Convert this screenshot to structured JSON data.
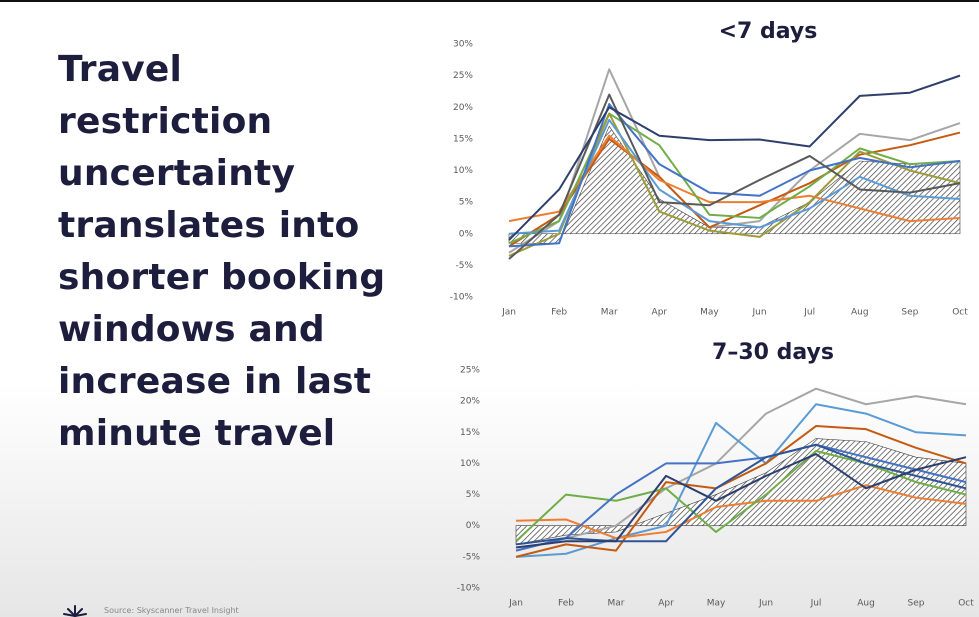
{
  "headline": [
    "Travel",
    "restriction",
    "uncertainty",
    "translates into",
    "shorter booking",
    "windows and",
    "increase in last",
    "minute travel"
  ],
  "source": "Source: Skyscanner Travel Insight",
  "chart_data": [
    {
      "type": "line",
      "title": "<7 days",
      "categories": [
        "Jan",
        "Feb",
        "Mar",
        "Apr",
        "May",
        "Jun",
        "Jul",
        "Aug",
        "Sep",
        "Oct"
      ],
      "ylim": [
        -10,
        30
      ],
      "yticks": [
        {
          "value": -10,
          "label": "-10%"
        },
        {
          "value": -5,
          "label": "-5%"
        },
        {
          "value": 0,
          "label": "0%"
        },
        {
          "value": 5,
          "label": "5%"
        },
        {
          "value": 10,
          "label": "10%"
        },
        {
          "value": 15,
          "label": "15%"
        },
        {
          "value": 20,
          "label": "20%"
        },
        {
          "value": 25,
          "label": "25%"
        },
        {
          "value": 30,
          "label": "30%"
        }
      ],
      "series": [
        {
          "style": "hatched",
          "color": "#404040",
          "values": [
            -1.5,
            -1.5,
            17,
            5.5,
            1,
            1,
            5,
            11.5,
            11,
            11.5
          ]
        },
        {
          "color": "#a6a6a6",
          "values": [
            -3,
            2,
            26,
            9,
            1,
            2,
            10,
            15.8,
            14.8,
            17.5
          ]
        },
        {
          "color": "#c55a11",
          "values": [
            -2,
            3,
            15,
            9,
            1,
            4.5,
            8,
            12.5,
            14,
            16
          ]
        },
        {
          "color": "#ed7d31",
          "values": [
            2,
            3.5,
            15.5,
            8.5,
            5,
            5,
            6,
            4,
            2,
            2.5
          ]
        },
        {
          "color": "#70ad47",
          "values": [
            -1.5,
            2,
            19,
            14,
            3,
            2.5,
            7.5,
            13.5,
            11,
            11.5
          ]
        },
        {
          "color": "#9c9c3a",
          "values": [
            -3.5,
            0,
            19,
            3.5,
            0.5,
            -0.5,
            5,
            13,
            10,
            8
          ]
        },
        {
          "color": "#5b9bd5",
          "values": [
            0,
            0.5,
            18,
            7,
            2,
            1,
            4,
            9,
            6,
            5.5
          ]
        },
        {
          "color": "#4472c4",
          "values": [
            -2,
            -1.5,
            20.5,
            11,
            6.5,
            6,
            10,
            12,
            10.5,
            11.5
          ]
        },
        {
          "color": "#595959",
          "values": [
            -4,
            3,
            22,
            5,
            4.5,
            8.5,
            12.3,
            7,
            6.5,
            8
          ]
        },
        {
          "color": "#2e3f6e",
          "values": [
            -1,
            7,
            20,
            15.5,
            14.8,
            14.9,
            13.8,
            21.8,
            22.3,
            25
          ]
        }
      ]
    },
    {
      "type": "line",
      "title": "7–30 days",
      "categories": [
        "Jan",
        "Feb",
        "Mar",
        "Apr",
        "May",
        "Jun",
        "Jul",
        "Aug",
        "Sep",
        "Oct"
      ],
      "ylim": [
        -10,
        25
      ],
      "yticks": [
        {
          "value": -10,
          "label": "-10%"
        },
        {
          "value": -5,
          "label": "-5%"
        },
        {
          "value": 0,
          "label": "0%"
        },
        {
          "value": 5,
          "label": "5%"
        },
        {
          "value": 10,
          "label": "10%"
        },
        {
          "value": 15,
          "label": "15%"
        },
        {
          "value": 20,
          "label": "20%"
        },
        {
          "value": 25,
          "label": "25%"
        }
      ],
      "series": [
        {
          "style": "hatched",
          "color": "#404040",
          "values": [
            -3,
            -1.5,
            -1,
            2,
            5,
            8.5,
            14,
            13.5,
            11,
            10
          ]
        },
        {
          "color": "#a6a6a6",
          "values": [
            -4,
            -2,
            0,
            6,
            10,
            18,
            22,
            19.5,
            20.8,
            19.5
          ]
        },
        {
          "color": "#5b9bd5",
          "values": [
            -5,
            -4.5,
            -2,
            0,
            16.5,
            10,
            19.5,
            18,
            15,
            14.5
          ]
        },
        {
          "color": "#c55a11",
          "values": [
            -5,
            -3,
            -4,
            7,
            6,
            10,
            16,
            15.5,
            12.5,
            10
          ]
        },
        {
          "color": "#ed7d31",
          "values": [
            0.8,
            1,
            -2,
            -1,
            3,
            4,
            4,
            6.5,
            4.5,
            3.5
          ]
        },
        {
          "color": "#70ad47",
          "values": [
            -2.5,
            5,
            4,
            6,
            -1,
            5,
            12,
            10,
            7,
            5
          ]
        },
        {
          "color": "#4472c4",
          "values": [
            -4,
            -2,
            5,
            10,
            10,
            11,
            13,
            11,
            9,
            7
          ]
        },
        {
          "color": "#2f5597",
          "values": [
            -3,
            -2,
            -2.5,
            -2.5,
            6,
            11,
            13,
            10,
            8,
            6
          ]
        },
        {
          "color": "#2e3f6e",
          "values": [
            -3.5,
            -2.5,
            -2.5,
            8,
            4,
            8,
            11.5,
            6,
            9,
            11
          ]
        }
      ]
    }
  ]
}
